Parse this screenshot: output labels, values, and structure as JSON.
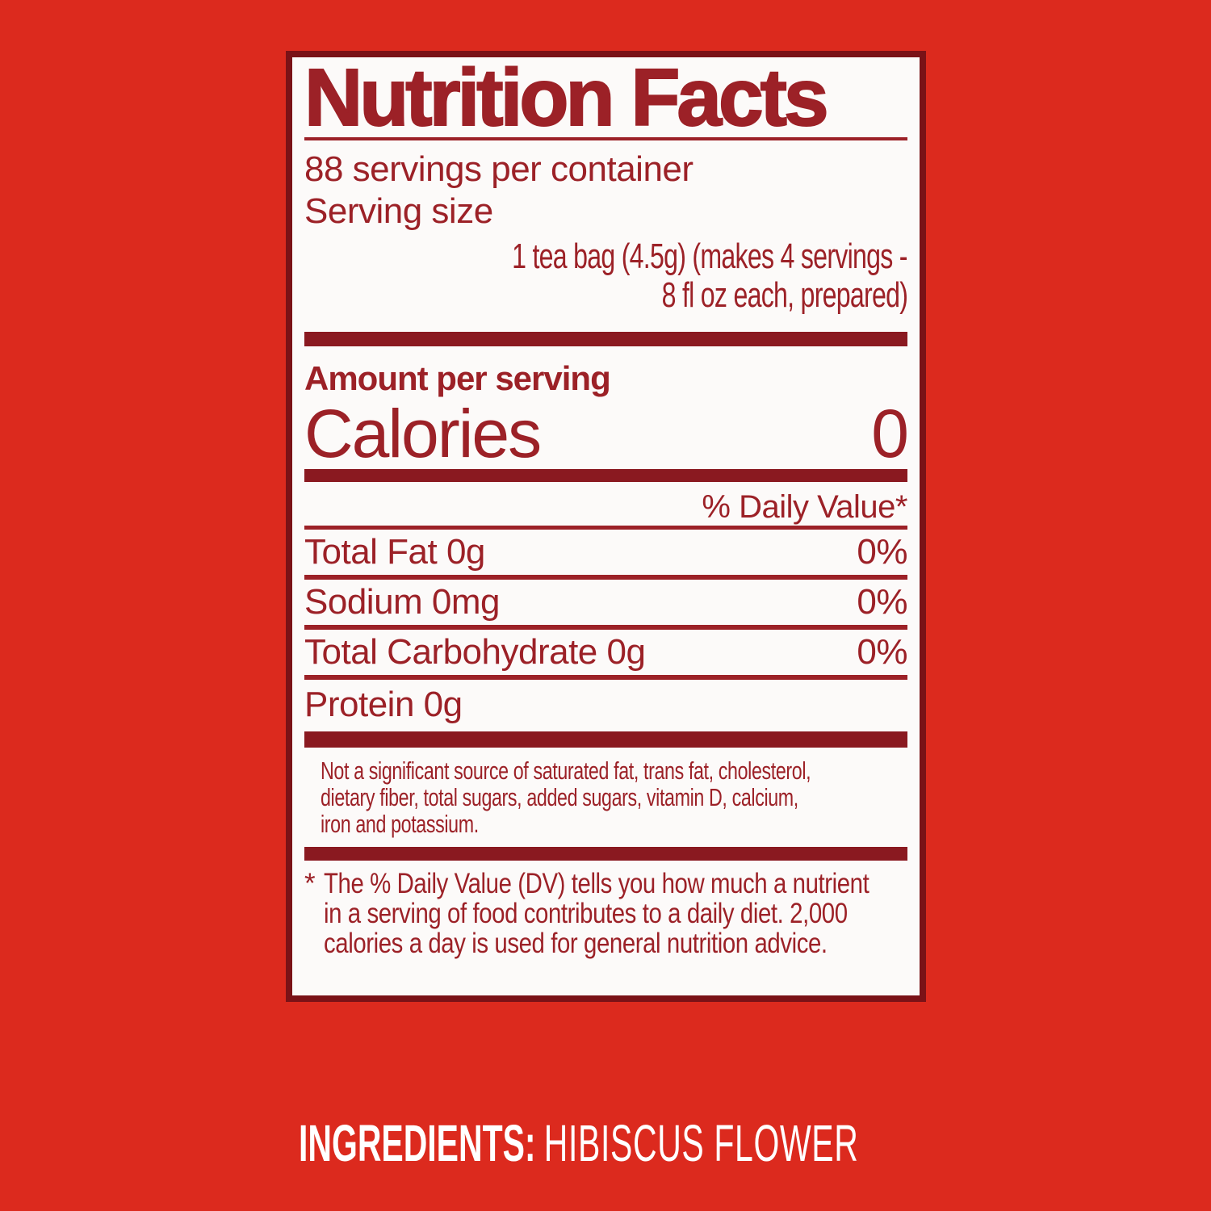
{
  "colors": {
    "background": "#DC2A1E",
    "label_text": "#9C2127",
    "thick_bars": "#8A1920",
    "panel_border": "#7A1217",
    "panel_background": "#FCFAF9",
    "ingredients_text": "#FFFFFF"
  },
  "label": {
    "title": "Nutrition Facts",
    "servings_per_container": "88 servings per container",
    "serving_size_label": "Serving size",
    "serving_size_lines": [
      "1 tea bag (4.5g) (makes 4 servings -",
      "8 fl oz each, prepared)"
    ],
    "amount_per_serving": "Amount per serving",
    "calories_label": "Calories",
    "calories_value": "0",
    "daily_value_header": "% Daily Value*",
    "rows": [
      {
        "label": "Total Fat 0g",
        "value": "0%"
      },
      {
        "label": "Sodium 0mg",
        "value": "0%"
      },
      {
        "label": "Total Carbohydrate 0g",
        "value": "0%"
      },
      {
        "label": "Protein 0g",
        "value": ""
      }
    ],
    "note_lines": [
      "Not a significant source of saturated fat, trans fat, cholesterol,",
      "dietary fiber, total sugars, added sugars, vitamin D, calcium,",
      "iron and potassium."
    ],
    "footnote_marker": "*",
    "footnote_lines": [
      "The % Daily Value (DV) tells you how much a nutrient",
      "in a serving of food contributes to a daily diet. 2,000",
      "calories a day is used for general nutrition advice."
    ]
  },
  "ingredients": {
    "label": "INGREDIENTS:",
    "value": "HIBISCUS FLOWER"
  }
}
